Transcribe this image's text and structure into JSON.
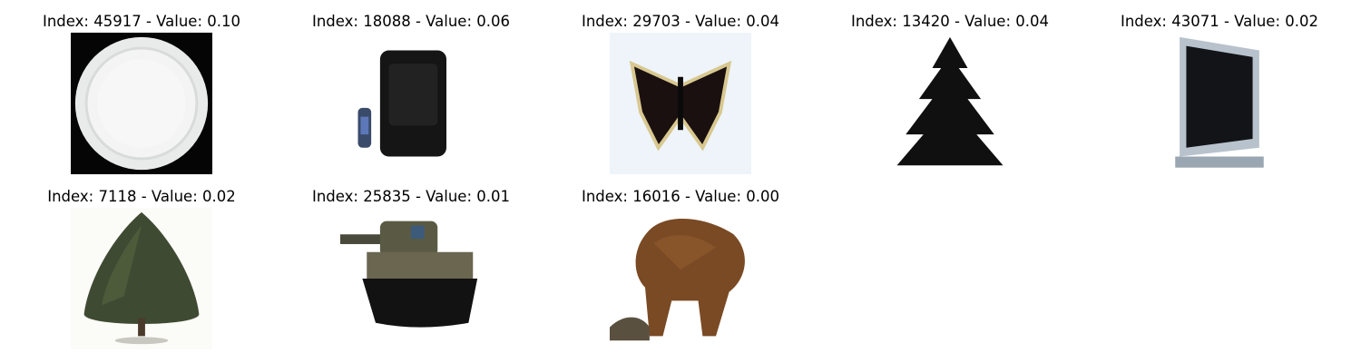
{
  "figure": {
    "panels": [
      {
        "index": "45917",
        "value": "0.10",
        "title": "Index: 45917 - Value: 0.10",
        "subject": "plate"
      },
      {
        "index": "18088",
        "value": "0.06",
        "title": "Index: 18088 - Value: 0.06",
        "subject": "crt-television-with-remote"
      },
      {
        "index": "29703",
        "value": "0.04",
        "title": "Index: 29703 - Value: 0.04",
        "subject": "butterfly"
      },
      {
        "index": "13420",
        "value": "0.04",
        "title": "Index: 13420 - Value: 0.04",
        "subject": "pine-tree"
      },
      {
        "index": "43071",
        "value": "0.02",
        "title": "Index: 43071 - Value: 0.02",
        "subject": "flat-panel-monitor"
      },
      {
        "index": "7118",
        "value": "0.02",
        "title": "Index: 7118 - Value: 0.02",
        "subject": "tree"
      },
      {
        "index": "25835",
        "value": "0.01",
        "title": "Index: 25835 - Value: 0.01",
        "subject": "tank"
      },
      {
        "index": "16016",
        "value": "0.00",
        "title": "Index: 16016 - Value: 0.00",
        "subject": "bear"
      }
    ]
  }
}
